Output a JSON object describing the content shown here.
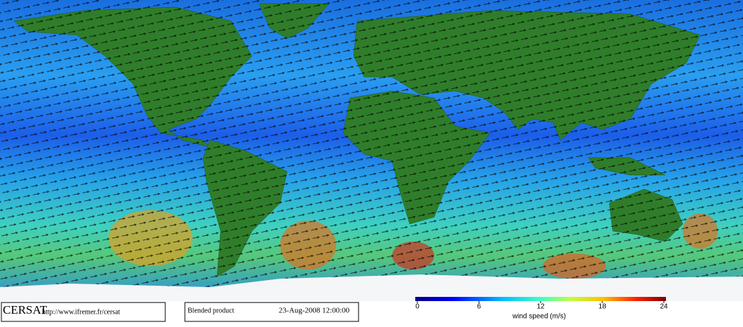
{
  "footer": {
    "logo": "CERSAT",
    "url": "http://www.ifremer.fr/cersat",
    "product": "Blended product",
    "date": "23-Aug-2008 12:00:00"
  },
  "colorbar": {
    "label": "wind speed (m/s)",
    "range": [
      0,
      24
    ],
    "ticks": [
      0,
      6,
      12,
      18,
      24
    ]
  }
}
